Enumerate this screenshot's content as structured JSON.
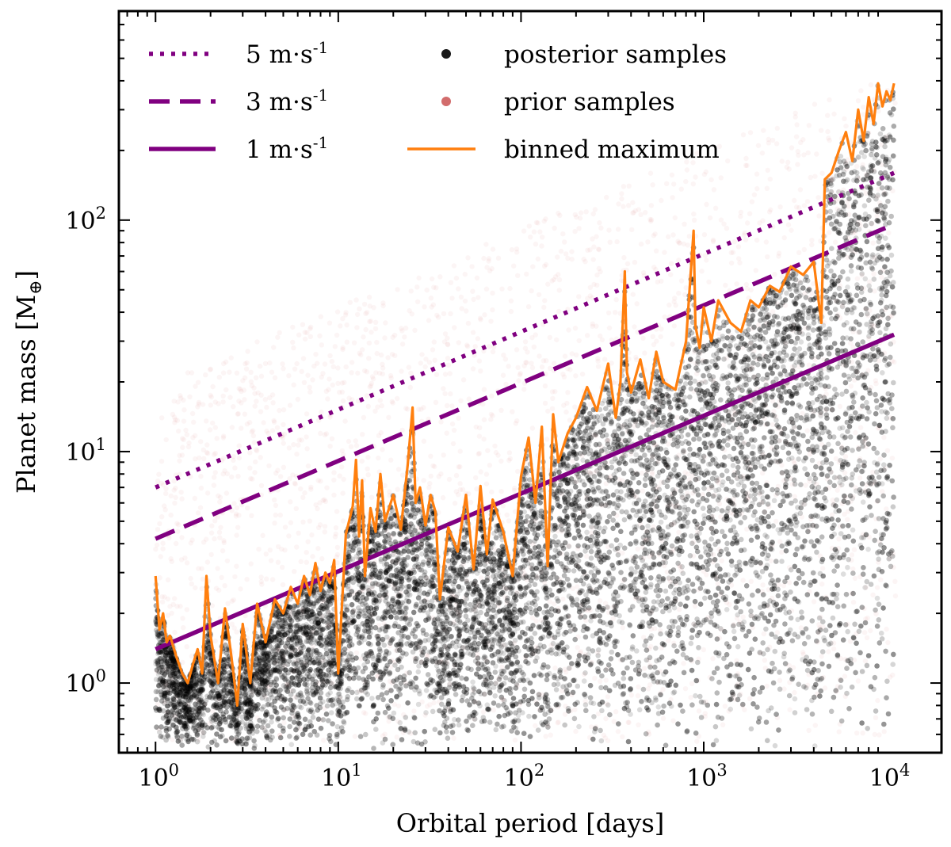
{
  "chart_data": {
    "type": "scatter",
    "title": "",
    "xlabel": "Orbital period [days]",
    "ylabel": "Planet mass [M",
    "ylabel_symbol": "⊕",
    "ylabel_close": "]",
    "xscale": "log",
    "yscale": "log",
    "xlim": [
      0.63,
      20000
    ],
    "ylim": [
      0.5,
      800
    ],
    "grid": false,
    "legend_placement": "top-left",
    "x_ticks": [
      {
        "base": "10",
        "exp": "0",
        "value": 1
      },
      {
        "base": "10",
        "exp": "1",
        "value": 10
      },
      {
        "base": "10",
        "exp": "2",
        "value": 100
      },
      {
        "base": "10",
        "exp": "3",
        "value": 1000
      },
      {
        "base": "10",
        "exp": "4",
        "value": 10000
      }
    ],
    "y_ticks": [
      {
        "base": "10",
        "exp": "0",
        "value": 1
      },
      {
        "base": "10",
        "exp": "1",
        "value": 10
      },
      {
        "base": "10",
        "exp": "2",
        "value": 100
      }
    ],
    "colors": {
      "limit": "#800080",
      "binned": "#ff7f0e",
      "posterior": "#000000",
      "prior": "#cd5c5c"
    },
    "legend": [
      {
        "label": "5 m·s",
        "sup": "-1",
        "style": "dotted",
        "color": "#800080"
      },
      {
        "label": "3 m·s",
        "sup": "-1",
        "style": "dashed",
        "color": "#800080"
      },
      {
        "label": "1 m·s",
        "sup": "-1",
        "style": "solid",
        "color": "#800080"
      },
      {
        "label": "posterior samples",
        "style": "marker",
        "color": "#000000"
      },
      {
        "label": "prior samples",
        "style": "marker",
        "color": "#cd5c5c"
      },
      {
        "label": "binned maximum",
        "style": "line",
        "color": "#ff7f0e"
      }
    ],
    "series": [
      {
        "name": "5 m·s-1",
        "style": "dotted",
        "x": [
          1,
          11000
        ],
        "y": [
          7.0,
          160
        ]
      },
      {
        "name": "3 m·s-1",
        "style": "dashed",
        "x": [
          1,
          11000
        ],
        "y": [
          4.2,
          96
        ]
      },
      {
        "name": "1 m·s-1",
        "style": "solid",
        "x": [
          1,
          11000
        ],
        "y": [
          1.4,
          32
        ]
      },
      {
        "name": "binned maximum",
        "style": "line",
        "x": [
          1,
          1.05,
          1.1,
          1.15,
          1.2,
          1.3,
          1.4,
          1.5,
          1.6,
          1.7,
          1.8,
          1.9,
          2.0,
          2.2,
          2.4,
          2.6,
          2.8,
          3.0,
          3.3,
          3.6,
          4.0,
          4.5,
          5.0,
          5.5,
          6.0,
          6.5,
          7.0,
          7.5,
          8.0,
          8.5,
          9.0,
          9.5,
          10,
          11,
          12,
          12.5,
          13,
          13.5,
          14,
          15,
          16,
          17,
          18,
          20,
          22,
          24,
          25.5,
          26.5,
          28,
          30,
          32,
          34,
          36,
          40,
          45,
          50,
          55,
          60,
          65,
          70,
          80,
          90,
          100,
          110,
          120,
          130,
          140,
          150,
          160,
          180,
          200,
          230,
          260,
          300,
          330,
          350,
          370,
          380,
          400,
          450,
          500,
          550,
          600,
          700,
          800,
          880,
          900,
          950,
          1000,
          1100,
          1200,
          1400,
          1600,
          1800,
          2000,
          2300,
          2600,
          3000,
          3500,
          4000,
          4400,
          4600,
          5000,
          5500,
          6000,
          6500,
          7000,
          7500,
          8000,
          8500,
          9000,
          9500,
          10000,
          10500,
          11000
        ],
        "y": [
          2.9,
          1.7,
          2.0,
          1.5,
          1.6,
          1.3,
          1.1,
          1.0,
          1.2,
          1.4,
          1.1,
          2.9,
          1.6,
          1.0,
          2.1,
          1.3,
          0.8,
          1.8,
          1.0,
          2.2,
          1.5,
          2.3,
          2.0,
          2.6,
          2.2,
          2.9,
          2.4,
          3.3,
          2.5,
          3.0,
          2.7,
          3.4,
          1.1,
          4.4,
          5.8,
          9.2,
          4.3,
          7.5,
          2.9,
          5.7,
          4.5,
          8.0,
          5.0,
          6.5,
          4.6,
          8.8,
          15.5,
          6.0,
          7.0,
          4.8,
          6.5,
          5.5,
          2.3,
          4.7,
          3.7,
          6.5,
          3.1,
          7.1,
          3.6,
          6.2,
          4.5,
          2.9,
          7.8,
          11.5,
          6.0,
          12.8,
          3.2,
          14.5,
          9.0,
          12.0,
          14.0,
          19.0,
          15.0,
          24.0,
          14.0,
          20.0,
          60.0,
          22.0,
          18.0,
          25.0,
          17.0,
          27.0,
          20.0,
          18.5,
          30.0,
          90.0,
          35.0,
          28.0,
          42.0,
          30.0,
          45.0,
          36.0,
          33.0,
          45.0,
          42.0,
          52.0,
          49.0,
          63.0,
          58.0,
          66.0,
          36.0,
          150.0,
          160.0,
          200.0,
          240.0,
          180.0,
          300.0,
          220.0,
          340.0,
          260.0,
          390.0,
          310.0,
          360.0,
          330.0,
          390.0
        ]
      }
    ]
  }
}
